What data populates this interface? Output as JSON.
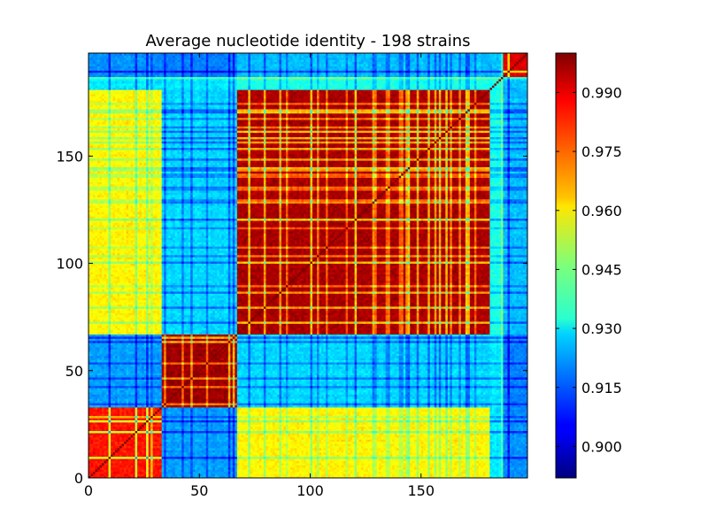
{
  "chart_data": {
    "type": "heatmap",
    "title": "Average nucleotide identity - 198 strains",
    "xlabel": "",
    "ylabel": "",
    "n": 198,
    "xlim": [
      0,
      198
    ],
    "ylim": [
      0,
      198
    ],
    "x_ticks": [
      0,
      50,
      100,
      150
    ],
    "y_ticks": [
      0,
      50,
      100,
      150
    ],
    "grid": false,
    "colormap": "jet",
    "colorbar": {
      "vmin": 0.892,
      "vmax": 1.0,
      "ticks": [
        0.9,
        0.915,
        0.93,
        0.945,
        0.96,
        0.975,
        0.99
      ],
      "tick_labels": [
        "0.900",
        "0.915",
        "0.930",
        "0.945",
        "0.960",
        "0.975",
        "0.990"
      ]
    },
    "groups": [
      {
        "id": "A",
        "start": 0,
        "end": 33
      },
      {
        "id": "B",
        "start": 33,
        "end": 67
      },
      {
        "id": "C",
        "start": 67,
        "end": 181
      },
      {
        "id": "D",
        "start": 181,
        "end": 186
      },
      {
        "id": "E",
        "start": 186,
        "end": 187
      },
      {
        "id": "F",
        "start": 187,
        "end": 198
      }
    ],
    "group_ani_matrix": [
      [
        0.985,
        0.922,
        0.96,
        0.93,
        0.94,
        0.92
      ],
      [
        0.922,
        0.997,
        0.928,
        0.93,
        0.94,
        0.918
      ],
      [
        0.96,
        0.928,
        0.996,
        0.935,
        0.945,
        0.925
      ],
      [
        0.93,
        0.93,
        0.935,
        0.935,
        0.94,
        0.925
      ],
      [
        0.94,
        0.94,
        0.945,
        0.94,
        1.0,
        0.935
      ],
      [
        0.92,
        0.918,
        0.925,
        0.925,
        0.935,
        0.99
      ]
    ]
  }
}
